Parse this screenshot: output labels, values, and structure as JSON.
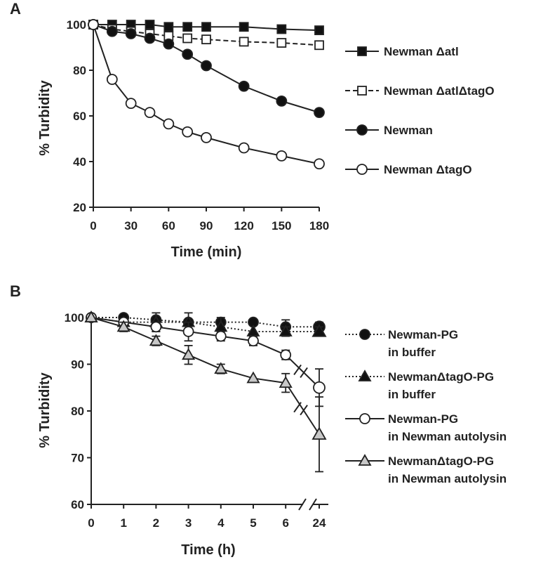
{
  "figure": {
    "panel_labels": [
      "A",
      "B"
    ]
  },
  "colors": {
    "ink": "#222222",
    "marker_fill_filled": "#111111",
    "marker_fill_open": "#ffffff",
    "marker_fill_gray": "#c8c8c8"
  },
  "chart_data": [
    {
      "type": "line",
      "panel": "A",
      "xlabel": "Time (min)",
      "ylabel": "% Turbidity",
      "xlim": [
        0,
        180
      ],
      "ylim": [
        20,
        100
      ],
      "xticks": [
        0,
        30,
        60,
        90,
        120,
        150,
        180
      ],
      "yticks": [
        20,
        40,
        60,
        80,
        100
      ],
      "grid": false,
      "legend_placement": "right",
      "series": [
        {
          "name": "Newman Δatl",
          "marker": "square-filled",
          "line": "solid",
          "x": [
            0,
            15,
            30,
            45,
            60,
            75,
            90,
            120,
            150,
            180
          ],
          "y": [
            100,
            100,
            100,
            100,
            99,
            99,
            99,
            99,
            98,
            97.5
          ]
        },
        {
          "name": "Newman ΔatlΔtagO",
          "marker": "square-open",
          "line": "dashed",
          "x": [
            0,
            15,
            30,
            45,
            60,
            75,
            90,
            120,
            150,
            180
          ],
          "y": [
            100,
            98,
            97,
            96,
            95,
            94,
            93.5,
            92.5,
            92,
            91
          ]
        },
        {
          "name": "Newman",
          "marker": "circle-filled",
          "line": "solid",
          "x": [
            0,
            15,
            30,
            45,
            60,
            75,
            90,
            120,
            150,
            180
          ],
          "y": [
            100,
            97,
            96,
            94,
            91.5,
            87,
            82,
            73,
            66.5,
            61.5
          ]
        },
        {
          "name": "Newman ΔtagO",
          "marker": "circle-open",
          "line": "solid",
          "x": [
            0,
            15,
            30,
            45,
            60,
            75,
            90,
            120,
            150,
            180
          ],
          "y": [
            100,
            76,
            65.5,
            61.5,
            56.5,
            53,
            50.5,
            46,
            42.5,
            39
          ]
        }
      ]
    },
    {
      "type": "line",
      "panel": "B",
      "xlabel": "Time (h)",
      "ylabel": "% Turbidity",
      "xcategories": [
        "0",
        "1",
        "2",
        "3",
        "4",
        "5",
        "6",
        "24"
      ],
      "axis_break": "between 6 and 24",
      "ylim": [
        60,
        100
      ],
      "yticks": [
        60,
        70,
        80,
        90,
        100
      ],
      "grid": false,
      "legend_placement": "right",
      "series": [
        {
          "name": "Newman-PG in buffer",
          "name_lines": [
            "Newman-PG",
            "in buffer"
          ],
          "marker": "circle-filled",
          "line": "dotted",
          "x": [
            "0",
            "1",
            "2",
            "3",
            "4",
            "5",
            "6",
            "24"
          ],
          "y": [
            100,
            100,
            99.5,
            99,
            99,
            99,
            98,
            98
          ],
          "err": [
            0,
            0,
            0,
            0,
            0,
            0,
            1.5,
            1
          ]
        },
        {
          "name": "NewmanΔtagO-PG in buffer",
          "name_lines": [
            "NewmanΔtagO-PG",
            "in buffer"
          ],
          "marker": "triangle-filled",
          "line": "dotted",
          "x": [
            "0",
            "1",
            "2",
            "3",
            "4",
            "5",
            "6",
            "24"
          ],
          "y": [
            100,
            99,
            99,
            99,
            98,
            97,
            97,
            97
          ],
          "err": [
            0,
            0,
            2,
            2,
            2,
            0,
            1,
            1
          ]
        },
        {
          "name": "Newman-PG in Newman autolysin",
          "name_lines": [
            "Newman-PG",
            "in Newman autolysin"
          ],
          "marker": "circle-open",
          "line": "solid",
          "x": [
            "0",
            "1",
            "2",
            "3",
            "4",
            "5",
            "6",
            "24"
          ],
          "y": [
            100,
            99,
            98,
            97,
            96,
            95,
            92,
            85
          ],
          "err": [
            0,
            0,
            1,
            2,
            1,
            1,
            1,
            4
          ]
        },
        {
          "name": "NewmanΔtagO-PG in Newman autolysin",
          "name_lines": [
            "NewmanΔtagO-PG",
            "in Newman autolysin"
          ],
          "marker": "triangle-gray",
          "line": "solid",
          "x": [
            "0",
            "1",
            "2",
            "3",
            "4",
            "5",
            "6",
            "24"
          ],
          "y": [
            100,
            98,
            95,
            92,
            89,
            87,
            86,
            75
          ],
          "err": [
            0,
            1,
            1,
            2,
            1,
            0,
            2,
            8
          ]
        }
      ]
    }
  ]
}
